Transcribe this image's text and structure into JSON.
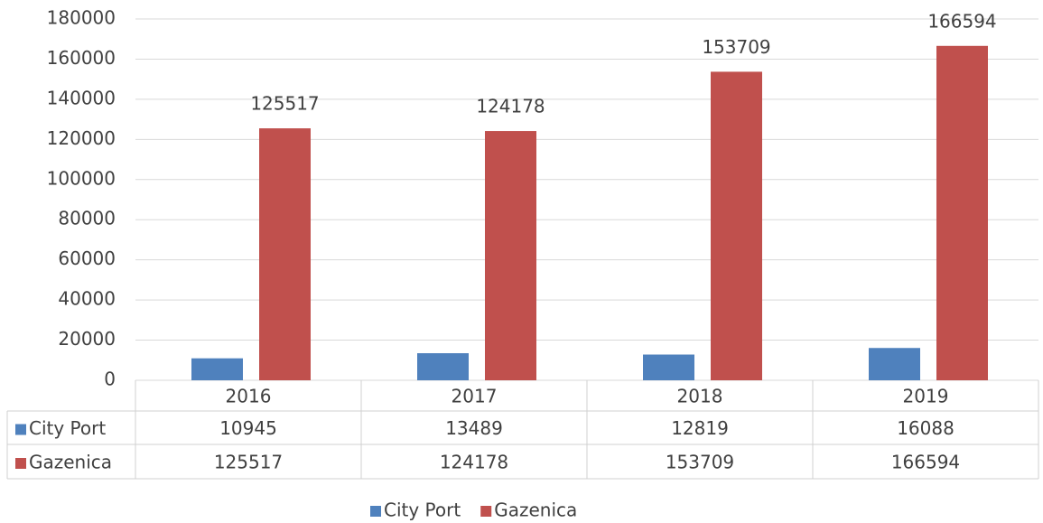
{
  "chart_data": {
    "type": "bar",
    "categories": [
      "2016",
      "2017",
      "2018",
      "2019"
    ],
    "series": [
      {
        "name": "City Port",
        "color": "#4f81bd",
        "values": [
          10945,
          13489,
          12819,
          16088
        ],
        "data_labels": false
      },
      {
        "name": "Gazenica",
        "color": "#c0504d",
        "values": [
          125517,
          124178,
          153709,
          166594
        ],
        "data_labels": true
      }
    ],
    "ylim": [
      0,
      180000
    ],
    "yticks": [
      0,
      20000,
      40000,
      60000,
      80000,
      100000,
      120000,
      140000,
      160000,
      180000
    ],
    "grid": true,
    "data_table": true,
    "legend": "bottom"
  }
}
